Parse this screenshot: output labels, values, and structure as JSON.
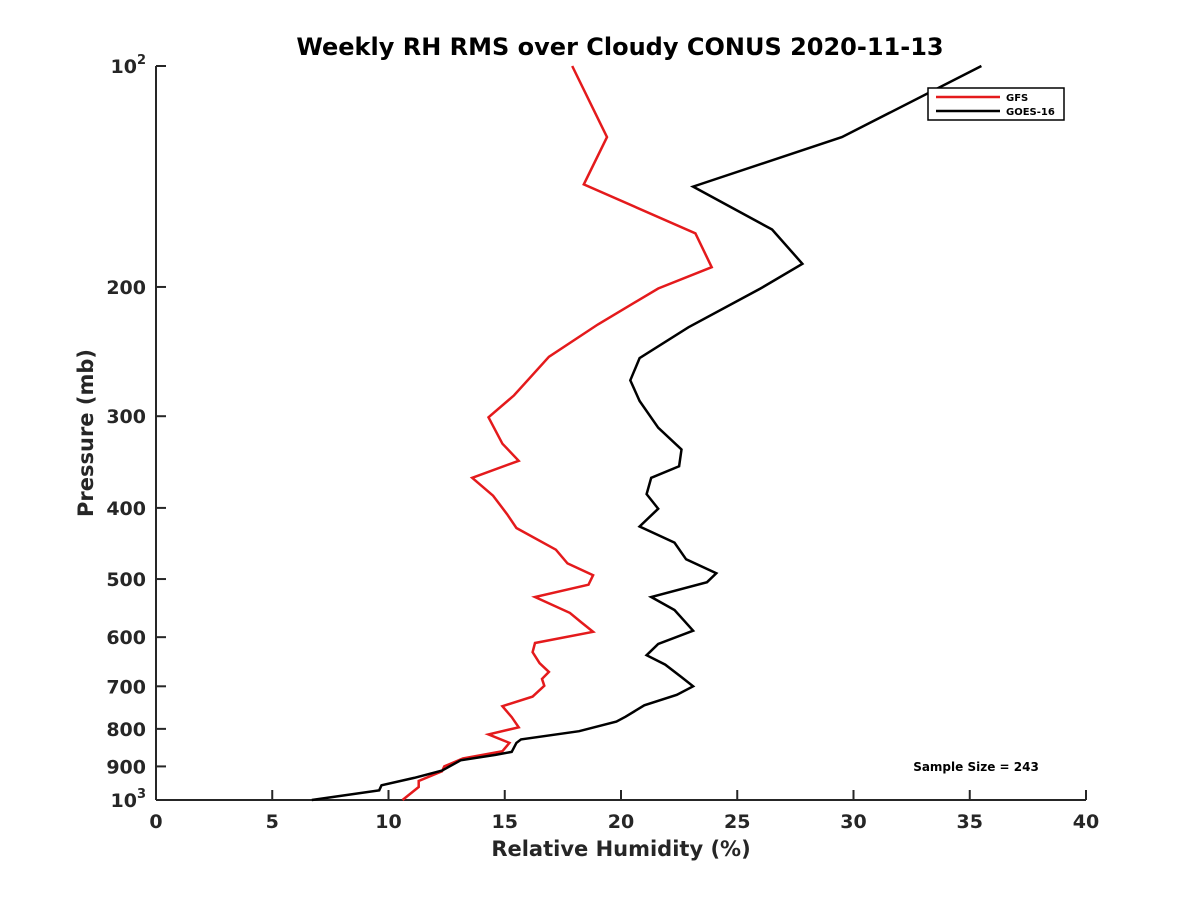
{
  "chart_data": {
    "type": "line",
    "title": "Weekly RH RMS over Cloudy CONUS 2020-11-13",
    "xlabel": "Relative Humidity (%)",
    "ylabel": "Pressure (mb)",
    "xlim": [
      0,
      40
    ],
    "ylim": [
      100,
      1000
    ],
    "y_scale": "log",
    "y_reversed": true,
    "grid": false,
    "legend_position": "top-right",
    "x_ticks": [
      0,
      5,
      10,
      15,
      20,
      25,
      30,
      35,
      40
    ],
    "x_tick_labels": [
      "0",
      "5",
      "10",
      "15",
      "20",
      "25",
      "30",
      "35",
      "40"
    ],
    "y_ticks": [
      100,
      200,
      300,
      400,
      500,
      600,
      700,
      800,
      900,
      1000
    ],
    "y_tick_labels": [
      {
        "base": "10",
        "exp": "2"
      },
      {
        "base": "200",
        "exp": ""
      },
      {
        "base": "300",
        "exp": ""
      },
      {
        "base": "400",
        "exp": ""
      },
      {
        "base": "500",
        "exp": ""
      },
      {
        "base": "600",
        "exp": ""
      },
      {
        "base": "700",
        "exp": ""
      },
      {
        "base": "800",
        "exp": ""
      },
      {
        "base": "900",
        "exp": ""
      },
      {
        "base": "10",
        "exp": "3"
      }
    ],
    "annotation": "Sample Size = 243",
    "series": [
      {
        "name": "GFS",
        "color": "#e41a1c",
        "points": [
          [
            17.9,
            100
          ],
          [
            19.4,
            125
          ],
          [
            18.4,
            145
          ],
          [
            23.2,
            169
          ],
          [
            23.9,
            188
          ],
          [
            21.6,
            201
          ],
          [
            19.0,
            225
          ],
          [
            16.9,
            249
          ],
          [
            15.4,
            281
          ],
          [
            14.3,
            301
          ],
          [
            14.9,
            327
          ],
          [
            15.6,
            345
          ],
          [
            13.6,
            364
          ],
          [
            14.5,
            385
          ],
          [
            15.1,
            408
          ],
          [
            15.5,
            426
          ],
          [
            17.2,
            456
          ],
          [
            17.7,
            476
          ],
          [
            18.8,
            494
          ],
          [
            18.6,
            509
          ],
          [
            16.3,
            529
          ],
          [
            17.8,
            556
          ],
          [
            18.3,
            573
          ],
          [
            18.8,
            590
          ],
          [
            16.3,
            611
          ],
          [
            16.2,
            629
          ],
          [
            16.5,
            651
          ],
          [
            16.9,
            669
          ],
          [
            16.6,
            684
          ],
          [
            16.7,
            699
          ],
          [
            16.2,
            723
          ],
          [
            14.9,
            745
          ],
          [
            15.3,
            771
          ],
          [
            15.6,
            796
          ],
          [
            14.3,
            814
          ],
          [
            15.2,
            836
          ],
          [
            14.9,
            858
          ],
          [
            13.2,
            878
          ],
          [
            12.4,
            900
          ],
          [
            12.3,
            914
          ],
          [
            11.3,
            942
          ],
          [
            11.3,
            960
          ],
          [
            10.6,
            1000
          ]
        ]
      },
      {
        "name": "GOES-16",
        "color": "#000000",
        "points": [
          [
            35.5,
            100
          ],
          [
            29.5,
            125
          ],
          [
            23.1,
            146
          ],
          [
            26.5,
            167
          ],
          [
            27.8,
            186
          ],
          [
            26.0,
            201
          ],
          [
            22.9,
            227
          ],
          [
            20.8,
            250
          ],
          [
            20.4,
            268
          ],
          [
            20.8,
            286
          ],
          [
            21.6,
            311
          ],
          [
            22.6,
            333
          ],
          [
            22.5,
            351
          ],
          [
            21.3,
            364
          ],
          [
            21.1,
            383
          ],
          [
            21.6,
            401
          ],
          [
            20.8,
            424
          ],
          [
            22.3,
            446
          ],
          [
            22.8,
            470
          ],
          [
            24.1,
            491
          ],
          [
            23.7,
            505
          ],
          [
            21.3,
            529
          ],
          [
            22.3,
            551
          ],
          [
            22.7,
            569
          ],
          [
            23.1,
            588
          ],
          [
            21.6,
            613
          ],
          [
            21.1,
            635
          ],
          [
            21.9,
            654
          ],
          [
            22.6,
            680
          ],
          [
            23.1,
            700
          ],
          [
            22.4,
            719
          ],
          [
            21.0,
            743
          ],
          [
            20.2,
            770
          ],
          [
            19.8,
            782
          ],
          [
            18.2,
            806
          ],
          [
            15.7,
            827
          ],
          [
            15.5,
            836
          ],
          [
            15.3,
            860
          ],
          [
            14.6,
            868
          ],
          [
            13.1,
            883
          ],
          [
            12.3,
            912
          ],
          [
            11.1,
            933
          ],
          [
            9.7,
            955
          ],
          [
            9.6,
            970
          ],
          [
            6.7,
            1000
          ]
        ]
      }
    ]
  }
}
